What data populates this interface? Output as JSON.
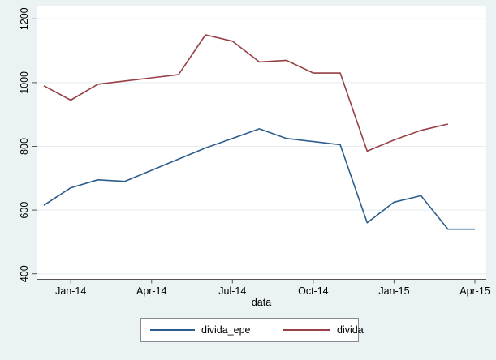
{
  "figure": {
    "background_color": "#eaf2f3",
    "plot_background_color": "#ffffff",
    "grid_color": "#e3edef",
    "axis_color": "#545454",
    "text_color": "#000000",
    "legend_border_color": "#858c92"
  },
  "chart_data": {
    "type": "line",
    "title": "",
    "xlabel": "data",
    "ylabel": "",
    "ylim": [
      400,
      1200
    ],
    "yticks": [
      400,
      600,
      800,
      1000,
      1200
    ],
    "grid": true,
    "legend_position": "bottom-center",
    "categories": [
      "Dec-13",
      "Jan-14",
      "Feb-14",
      "Mar-14",
      "Apr-14",
      "May-14",
      "Jun-14",
      "Jul-14",
      "Aug-14",
      "Sep-14",
      "Oct-14",
      "Nov-14",
      "Dec-14",
      "Jan-15",
      "Feb-15",
      "Mar-15",
      "Apr-15"
    ],
    "x_ticks": {
      "labels": [
        "Jan-14",
        "Apr-14",
        "Jul-14",
        "Oct-14",
        "Jan-15",
        "Apr-15"
      ],
      "category_indices": [
        1,
        4,
        7,
        10,
        13,
        16
      ]
    },
    "series": [
      {
        "name": "divida_epe",
        "color": "#2c5d8c",
        "values": [
          615,
          670,
          695,
          690,
          725,
          760,
          795,
          825,
          855,
          825,
          815,
          805,
          560,
          625,
          645,
          540,
          540
        ]
      },
      {
        "name": "divida",
        "color": "#963f45",
        "values": [
          990,
          945,
          995,
          1005,
          1015,
          1025,
          1150,
          1130,
          1065,
          1070,
          1030,
          1030,
          785,
          820,
          850,
          870
        ]
      }
    ]
  }
}
